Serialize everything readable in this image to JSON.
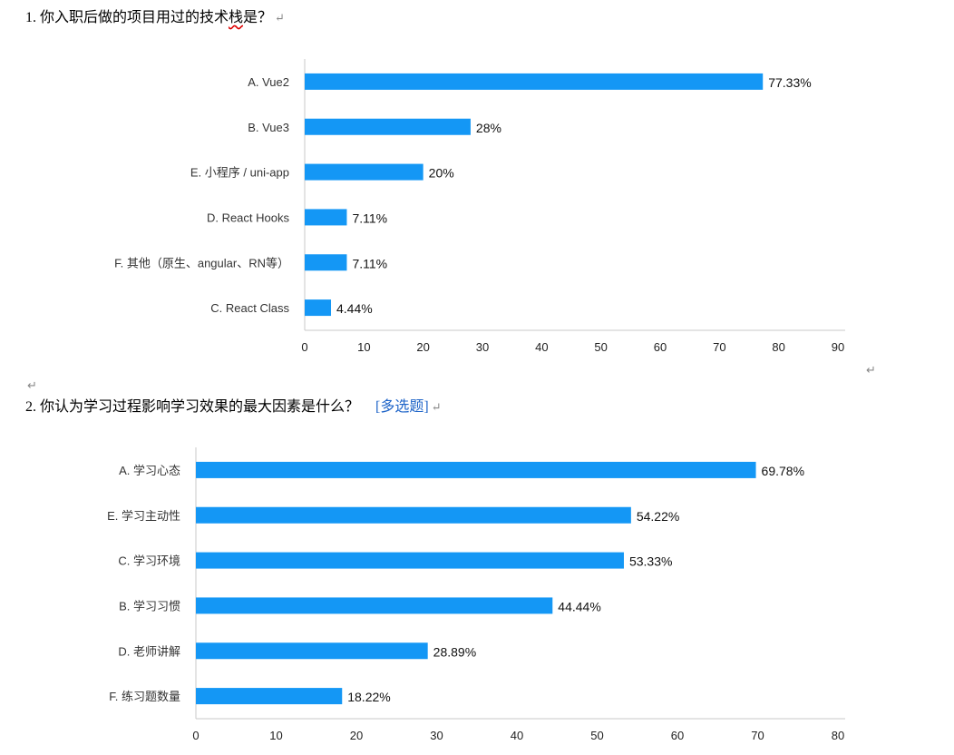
{
  "colors": {
    "bar": "#1497f5",
    "axis": "#c9c9c9",
    "tag": "#1e64c8"
  },
  "questions": [
    {
      "number": "1.",
      "text": "你入职后做的项目用过的技术",
      "text_flagged": "栈",
      "text_end": "是？",
      "tag": ""
    },
    {
      "number": "2.",
      "text": "你认为学习过程影响学习效果的最大因素是什么？",
      "text_flagged": "",
      "text_end": "",
      "tag": "[多选题]"
    }
  ],
  "chart_data": [
    {
      "type": "bar",
      "orientation": "horizontal",
      "categories": [
        "A. Vue2",
        "B. Vue3",
        "E. 小程序 / uni-app",
        "D. React Hooks",
        "F. 其他（原生、angular、RN等）",
        "C. React Class"
      ],
      "values": [
        77.33,
        28,
        20,
        7.11,
        7.11,
        4.44
      ],
      "value_labels": [
        "77.33%",
        "28%",
        "20%",
        "7.11%",
        "7.11%",
        "4.44%"
      ],
      "xlim": [
        0,
        90
      ],
      "ticks": [
        0,
        10,
        20,
        30,
        40,
        50,
        60,
        70,
        80,
        90
      ],
      "grid": false
    },
    {
      "type": "bar",
      "orientation": "horizontal",
      "categories": [
        "A. 学习心态",
        "E. 学习主动性",
        "C. 学习环境",
        "B. 学习习惯",
        "D. 老师讲解",
        "F. 练习题数量"
      ],
      "values": [
        69.78,
        54.22,
        53.33,
        44.44,
        28.89,
        18.22
      ],
      "value_labels": [
        "69.78%",
        "54.22%",
        "53.33%",
        "44.44%",
        "28.89%",
        "18.22%"
      ],
      "xlim": [
        0,
        80
      ],
      "ticks": [
        0,
        10,
        20,
        30,
        40,
        50,
        60,
        70,
        80
      ],
      "grid": false
    }
  ]
}
